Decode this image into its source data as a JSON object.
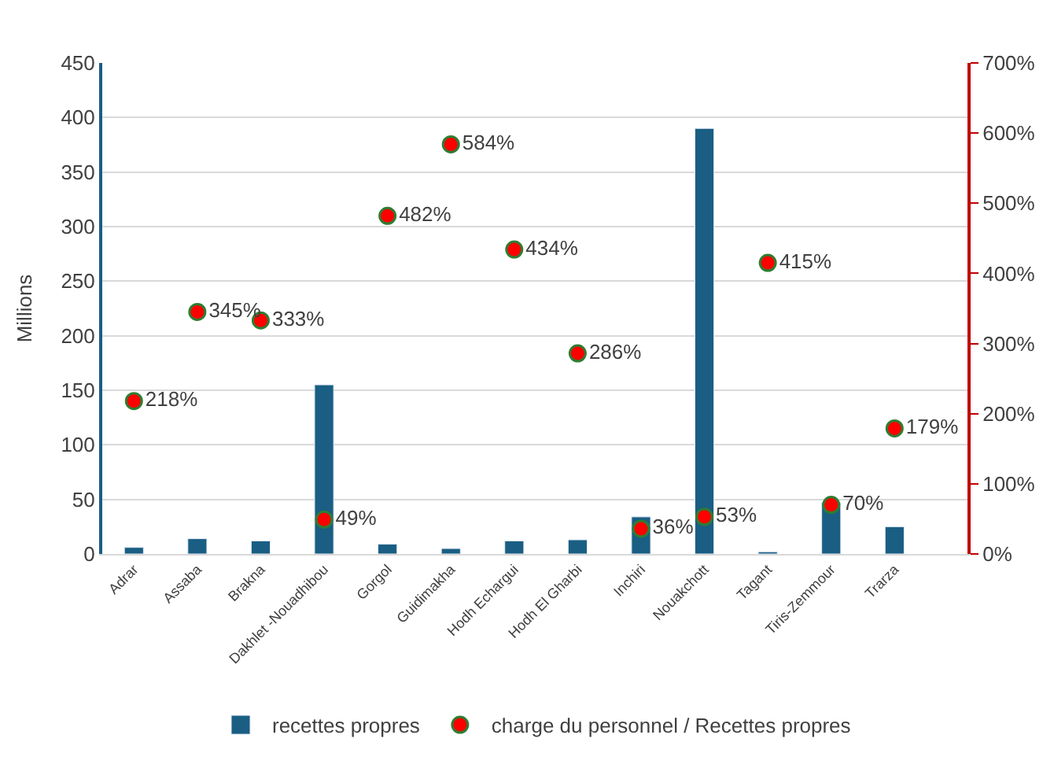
{
  "chart_data": {
    "type": "bar",
    "ylabel": "Millions",
    "categories": [
      "Adrar",
      "Assaba",
      "Brakna",
      "Dakhlet -Nouadhibou",
      "Gorgol",
      "Guidimakha",
      "Hodh Echargui",
      "Hodh El Gharbi",
      "Inchiri",
      "Nouakchott",
      "Tagant",
      "Tiris-Zemmour",
      "Trarza"
    ],
    "series": [
      {
        "name": "recettes propres",
        "color": "#1a5e83",
        "values": [
          6,
          14,
          12,
          155,
          9,
          5,
          12,
          13,
          34,
          390,
          2,
          47,
          25
        ]
      },
      {
        "name": "charge du personnel / Recettes propres",
        "type": "scatter",
        "axis": "y2",
        "color": "#ff0000",
        "marker": "circle",
        "values": [
          218,
          345,
          333,
          49,
          482,
          584,
          434,
          286,
          36,
          53,
          415,
          70,
          179
        ],
        "value_labels": [
          "218%",
          "345%",
          "333%",
          "49%",
          "482%",
          "584%",
          "434%",
          "286%",
          "36%",
          "53%",
          "415%",
          "70%",
          "179%"
        ]
      }
    ],
    "ylim": [
      0,
      450
    ],
    "yticks": [
      0,
      50,
      100,
      150,
      200,
      250,
      300,
      350,
      400,
      450
    ],
    "y2lim": [
      0,
      700
    ],
    "y2ticks": [
      {
        "value": 0,
        "label": "0%"
      },
      {
        "value": 100,
        "label": "100%"
      },
      {
        "value": 200,
        "label": "200%"
      },
      {
        "value": 300,
        "label": "300%"
      },
      {
        "value": 400,
        "label": "400%"
      },
      {
        "value": 500,
        "label": "500%"
      },
      {
        "value": 600,
        "label": "600%"
      },
      {
        "value": 700,
        "label": "700%"
      }
    ],
    "grid": "y",
    "legend": "bottom"
  }
}
